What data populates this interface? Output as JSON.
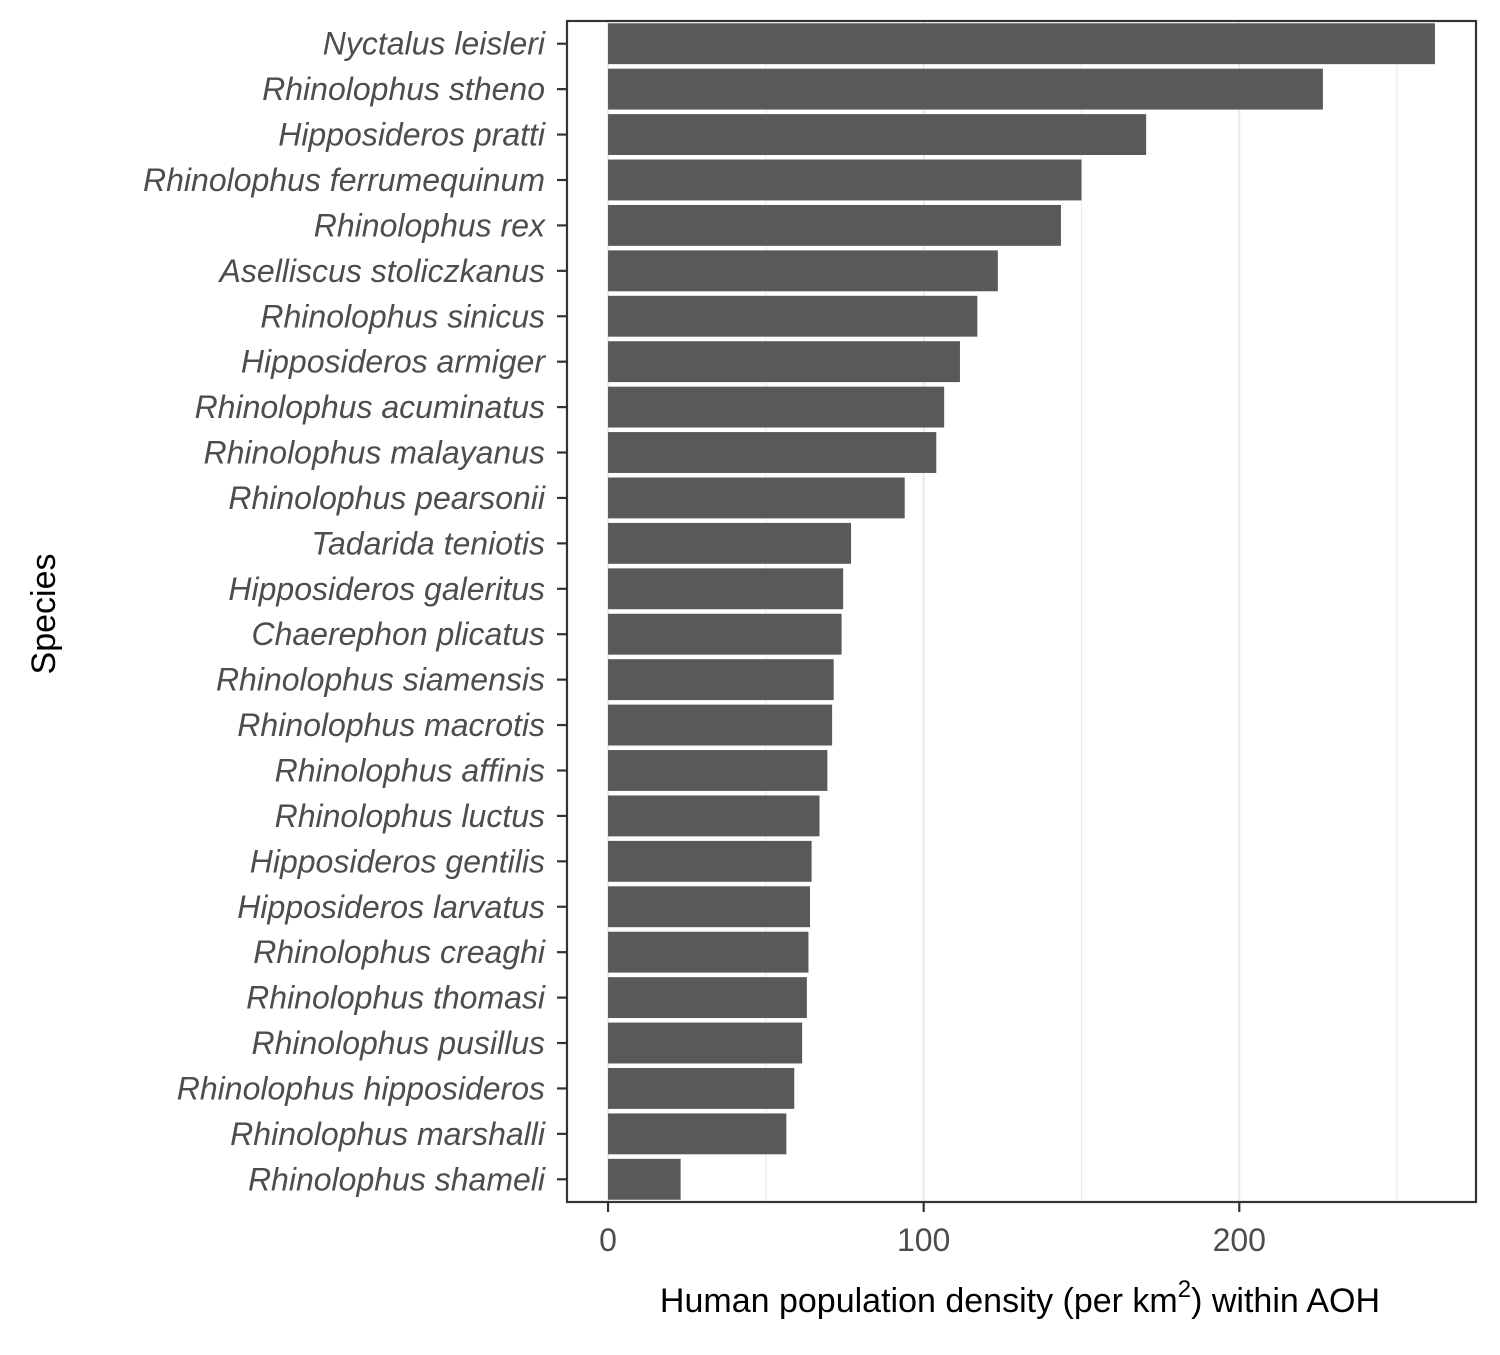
{
  "chart_data": {
    "type": "bar",
    "orientation": "horizontal",
    "categories": [
      "Nyctalus leisleri",
      "Rhinolophus stheno",
      "Hipposideros pratti",
      "Rhinolophus ferrumequinum",
      "Rhinolophus rex",
      "Aselliscus stoliczkanus",
      "Rhinolophus sinicus",
      "Hipposideros armiger",
      "Rhinolophus acuminatus",
      "Rhinolophus malayanus",
      "Rhinolophus pearsonii",
      "Tadarida teniotis",
      "Hipposideros galeritus",
      "Chaerephon plicatus",
      "Rhinolophus siamensis",
      "Rhinolophus macrotis",
      "Rhinolophus affinis",
      "Rhinolophus luctus",
      "Hipposideros gentilis",
      "Hipposideros larvatus",
      "Rhinolophus creaghi",
      "Rhinolophus thomasi",
      "Rhinolophus pusillus",
      "Rhinolophus hipposideros",
      "Rhinolophus marshalli",
      "Rhinolophus shameli"
    ],
    "values": [
      262,
      226.5,
      170.5,
      150,
      143.5,
      123.5,
      117,
      111.5,
      106.5,
      104,
      94,
      77,
      74.5,
      74,
      71.5,
      71,
      69.5,
      67,
      64.5,
      64,
      63.5,
      63,
      61.5,
      59,
      56.5,
      23
    ],
    "xlabel": "Human population density (per km",
    "xlabel_sup": "2",
    "xlabel_suffix": ") within AOH",
    "ylabel": "Species",
    "xlim": [
      -13,
      275
    ],
    "xticks": [
      0,
      100,
      200
    ],
    "xtick_labels": [
      "0",
      "100",
      "200"
    ],
    "minor_gridlines": [
      50,
      150,
      250
    ],
    "grid": true,
    "bar_color": "#595959",
    "grid_color": "#ebebeb",
    "panel_border_color": "#333333"
  }
}
